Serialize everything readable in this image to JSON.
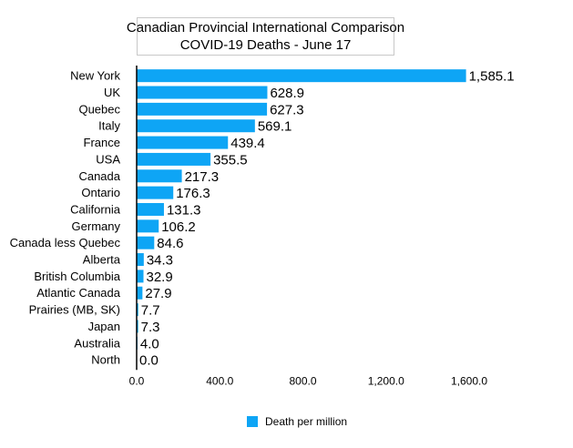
{
  "chart_data": {
    "type": "bar",
    "orientation": "horizontal",
    "title": [
      "Canadian Provincial International Comparison",
      "COVID-19 Deaths - June 17"
    ],
    "categories": [
      "New York",
      "UK",
      "Quebec",
      "Italy",
      "France",
      "USA",
      "Canada",
      "Ontario",
      "California",
      "Germany",
      "Canada less Quebec",
      "Alberta",
      "British Columbia",
      "Atlantic Canada",
      "Prairies (MB, SK)",
      "Japan",
      "Australia",
      "North"
    ],
    "value_labels": [
      "1,585.1",
      "628.9",
      "627.3",
      "569.1",
      "439.4",
      "355.5",
      "217.3",
      "176.3",
      "131.3",
      "106.2",
      "84.6",
      "34.3",
      "32.9",
      "27.9",
      "7.7",
      "7.3",
      "4.0",
      "0.0"
    ],
    "series": [
      {
        "name": "Death per million",
        "values": [
          1585.1,
          628.9,
          627.3,
          569.1,
          439.4,
          355.5,
          217.3,
          176.3,
          131.3,
          106.2,
          84.6,
          34.3,
          32.9,
          27.9,
          7.7,
          7.3,
          4.0,
          0.0
        ],
        "color": "#0ea5f5"
      }
    ],
    "xlim": [
      0,
      1600
    ],
    "xticks": [
      0,
      400,
      800,
      1200,
      1600
    ],
    "xtick_labels": [
      "0.0",
      "400.0",
      "800.0",
      "1,200.0",
      "1,600.0"
    ],
    "grid": false,
    "legend_position": "bottom-center"
  }
}
